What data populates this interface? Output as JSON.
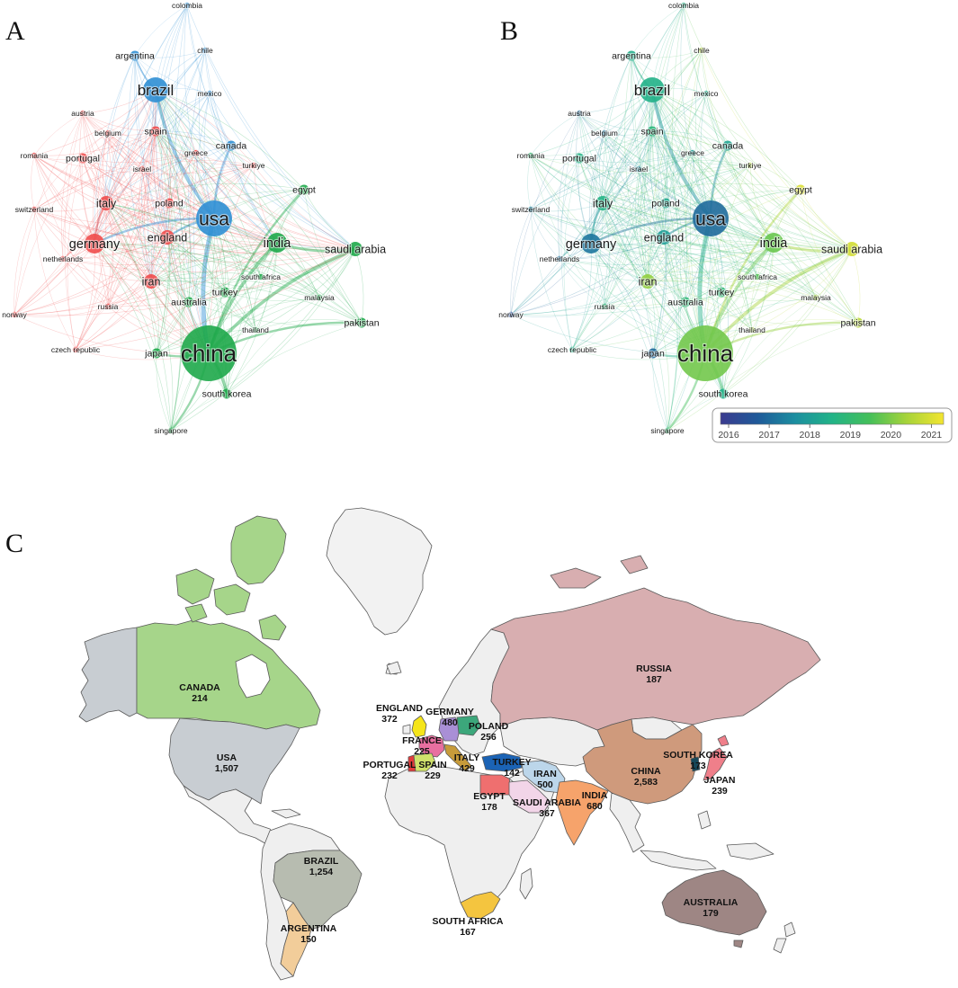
{
  "panel_labels": {
    "a": "A",
    "b": "B",
    "c": "C"
  },
  "networks": {
    "nodes": [
      {
        "id": "colombia",
        "label": "colombia",
        "cluster": "blue",
        "weight": 1,
        "year": 2018.6
      },
      {
        "id": "argentina",
        "label": "argentina",
        "cluster": "blue",
        "weight": 2,
        "year": 2018.4
      },
      {
        "id": "chile",
        "label": "chile",
        "cluster": "blue",
        "weight": 1,
        "year": 2020.6
      },
      {
        "id": "brazil",
        "label": "brazil",
        "cluster": "blue",
        "weight": 5,
        "year": 2018.5
      },
      {
        "id": "mexico",
        "label": "mexico",
        "cluster": "blue",
        "weight": 1,
        "year": 2018.4
      },
      {
        "id": "austria",
        "label": "austria",
        "cluster": "red",
        "weight": 1,
        "year": 2017.0
      },
      {
        "id": "belgium",
        "label": "belgium",
        "cluster": "red",
        "weight": 1,
        "year": 2017.2
      },
      {
        "id": "spain",
        "label": "spain",
        "cluster": "red",
        "weight": 2,
        "year": 2018.8
      },
      {
        "id": "canada",
        "label": "canada",
        "cluster": "blue",
        "weight": 2,
        "year": 2018.2
      },
      {
        "id": "romania",
        "label": "romania",
        "cluster": "red",
        "weight": 1,
        "year": 2019.0
      },
      {
        "id": "portugal",
        "label": "portugal",
        "cluster": "red",
        "weight": 2,
        "year": 2018.6
      },
      {
        "id": "greece",
        "label": "greece",
        "cluster": "red",
        "weight": 1,
        "year": 2018.0
      },
      {
        "id": "turkiye",
        "label": "turkiye",
        "cluster": "red",
        "weight": 1,
        "year": 2020.5
      },
      {
        "id": "israel",
        "label": "israel",
        "cluster": "red",
        "weight": 1,
        "year": 2017.5
      },
      {
        "id": "egypt",
        "label": "egypt",
        "cluster": "green",
        "weight": 2,
        "year": 2021.0
      },
      {
        "id": "switzerland",
        "label": "switzerland",
        "cluster": "red",
        "weight": 1,
        "year": 2017.4
      },
      {
        "id": "italy",
        "label": "italy",
        "cluster": "red",
        "weight": 3,
        "year": 2018.6
      },
      {
        "id": "poland",
        "label": "poland",
        "cluster": "red",
        "weight": 2,
        "year": 2018.3
      },
      {
        "id": "usa",
        "label": "usa",
        "cluster": "blue",
        "weight": 7,
        "year": 2017.0
      },
      {
        "id": "germany",
        "label": "germany",
        "cluster": "red",
        "weight": 4,
        "year": 2017.2
      },
      {
        "id": "england",
        "label": "england",
        "cluster": "red",
        "weight": 3,
        "year": 2018.0
      },
      {
        "id": "india",
        "label": "india",
        "cluster": "green",
        "weight": 4,
        "year": 2019.8
      },
      {
        "id": "saudi-arabia",
        "label": "saudi arabia",
        "cluster": "green",
        "weight": 3,
        "year": 2020.9
      },
      {
        "id": "netherlands",
        "label": "netherlands",
        "cluster": "red",
        "weight": 1,
        "year": 2017.1
      },
      {
        "id": "iran",
        "label": "iran",
        "cluster": "red",
        "weight": 3,
        "year": 2020.2
      },
      {
        "id": "south-africa",
        "label": "south africa",
        "cluster": "green",
        "weight": 1,
        "year": 2019.6
      },
      {
        "id": "australia",
        "label": "australia",
        "cluster": "green",
        "weight": 2,
        "year": 2018.9
      },
      {
        "id": "turkey",
        "label": "turkey",
        "cluster": "green",
        "weight": 2,
        "year": 2018.9
      },
      {
        "id": "malaysia",
        "label": "malaysia",
        "cluster": "green",
        "weight": 1,
        "year": 2020.4
      },
      {
        "id": "norway",
        "label": "norway",
        "cluster": "red",
        "weight": 1,
        "year": 2016.4
      },
      {
        "id": "russia",
        "label": "russia",
        "cluster": "red",
        "weight": 1,
        "year": 2018.9
      },
      {
        "id": "pakistan",
        "label": "pakistan",
        "cluster": "green",
        "weight": 2,
        "year": 2020.6
      },
      {
        "id": "thailand",
        "label": "thailand",
        "cluster": "green",
        "weight": 1,
        "year": 2020.4
      },
      {
        "id": "czech-republic",
        "label": "czech republic",
        "cluster": "red",
        "weight": 1,
        "year": 2018.5
      },
      {
        "id": "japan",
        "label": "japan",
        "cluster": "green",
        "weight": 2,
        "year": 2017.0
      },
      {
        "id": "china",
        "label": "china",
        "cluster": "green",
        "weight": 9,
        "year": 2019.9
      },
      {
        "id": "south-korea",
        "label": "south korea",
        "cluster": "green",
        "weight": 2,
        "year": 2018.5
      },
      {
        "id": "singapore",
        "label": "singapore",
        "cluster": "green",
        "weight": 1,
        "year": 2019.0
      }
    ],
    "colorbar": {
      "ticks": [
        "2016",
        "2017",
        "2018",
        "2019",
        "2020",
        "2021"
      ],
      "min": 2015.8,
      "max": 2021.3,
      "gradient": [
        "#3b3b8f",
        "#1f5a99",
        "#1c8ea0",
        "#22b387",
        "#44bf5a",
        "#a6d33a",
        "#f3e530"
      ]
    },
    "cluster_colors": {
      "red": "#ef4b4b",
      "blue": "#2f8fd4",
      "green": "#1ea94a"
    }
  },
  "map": {
    "countries": [
      {
        "id": "canada",
        "name": "CANADA",
        "value": "214",
        "color": "#a6d58a"
      },
      {
        "id": "usa",
        "name": "USA",
        "value": "1,507",
        "color": "#c8cdd2"
      },
      {
        "id": "brazil",
        "name": "BRAZIL",
        "value": "1,254",
        "color": "#b7bcb0"
      },
      {
        "id": "argentina",
        "name": "ARGENTINA",
        "value": "150",
        "color": "#f2cd9a"
      },
      {
        "id": "russia",
        "name": "RUSSIA",
        "value": "187",
        "color": "#d8aeb0"
      },
      {
        "id": "england",
        "name": "ENGLAND",
        "value": "372",
        "color": "#f5e51a"
      },
      {
        "id": "germany",
        "name": "GERMANY",
        "value": "480",
        "color": "#a98fd6"
      },
      {
        "id": "poland",
        "name": "POLAND",
        "value": "256",
        "color": "#3ca77b"
      },
      {
        "id": "france",
        "name": "FRANCE",
        "value": "225",
        "color": "#e86fa0"
      },
      {
        "id": "italy",
        "name": "ITALY",
        "value": "429",
        "color": "#c79b3a"
      },
      {
        "id": "portugal",
        "name": "PORTUGAL",
        "value": "232",
        "color": "#e23b3b"
      },
      {
        "id": "spain",
        "name": "SPAIN",
        "value": "229",
        "color": "#cfe16b"
      },
      {
        "id": "turkey",
        "name": "TURKEY",
        "value": "142",
        "color": "#1b63b5"
      },
      {
        "id": "iran",
        "name": "IRAN",
        "value": "500",
        "color": "#bcd6ea"
      },
      {
        "id": "egypt",
        "name": "EGYPT",
        "value": "178",
        "color": "#ef6f6f"
      },
      {
        "id": "saudi-arabia",
        "name": "SAUDI ARABIA",
        "value": "367",
        "color": "#f2d5e8"
      },
      {
        "id": "india",
        "name": "INDIA",
        "value": "680",
        "color": "#f6a36b"
      },
      {
        "id": "china",
        "name": "CHINA",
        "value": "2,583",
        "color": "#cf9a7c"
      },
      {
        "id": "south-korea",
        "name": "SOUTH KOREA",
        "value": "173",
        "color": "#16485a"
      },
      {
        "id": "japan",
        "name": "JAPAN",
        "value": "239",
        "color": "#ef7f8a"
      },
      {
        "id": "south-africa",
        "name": "SOUTH AFRICA",
        "value": "167",
        "color": "#f4c53f"
      },
      {
        "id": "australia",
        "name": "AUSTRALIA",
        "value": "179",
        "color": "#9e8684"
      }
    ],
    "other_land_color": "#efefef",
    "greenland_color": "#f2f2f2"
  }
}
